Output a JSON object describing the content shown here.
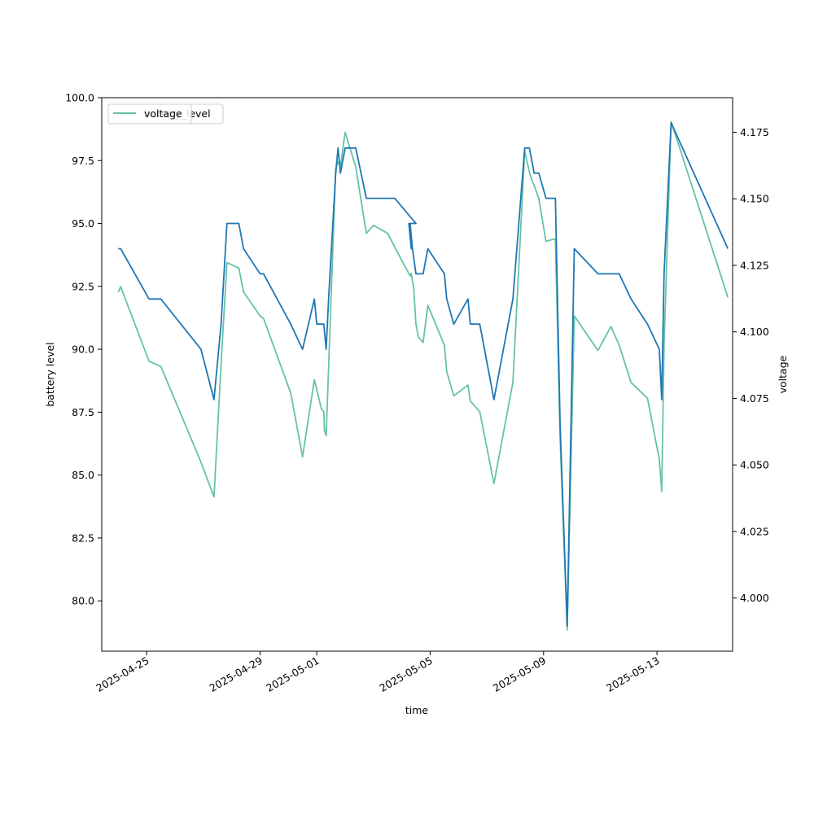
{
  "chart_data": {
    "type": "line",
    "title": "",
    "xlabel": "time",
    "ylabel": "battery level",
    "y2label": "voltage",
    "x_ticks": [
      "2025-04-25",
      "2025-04-29",
      "2025-05-01",
      "2025-05-05",
      "2025-05-09",
      "2025-05-13"
    ],
    "y_ticks": [
      "80.0",
      "82.5",
      "85.0",
      "87.5",
      "90.0",
      "92.5",
      "95.0",
      "97.5",
      "100.0"
    ],
    "y2_ticks": [
      "4.000",
      "4.025",
      "4.050",
      "4.075",
      "4.100",
      "4.125",
      "4.150",
      "4.175"
    ],
    "xlim": [
      "2025-04-23T10:00",
      "2025-05-15T16:00"
    ],
    "ylim": [
      78.0,
      100.0
    ],
    "y2lim": [
      3.98,
      4.188
    ],
    "grid": false,
    "legend": {
      "placement": "top-left",
      "entries": [
        {
          "label": "battery_level",
          "color": "#1f77b4"
        },
        {
          "label": "voltage",
          "color": "#66c2a5"
        }
      ]
    },
    "series": [
      {
        "name": "battery_level",
        "axis": "left",
        "color": "#1f77b4",
        "points": [
          [
            "2025-04-24T00:00",
            94.0
          ],
          [
            "2025-04-24T02:00",
            94.0
          ],
          [
            "2025-04-25T02:00",
            92.0
          ],
          [
            "2025-04-25T12:00",
            92.0
          ],
          [
            "2025-04-26T22:00",
            90.0
          ],
          [
            "2025-04-27T09:00",
            88.0
          ],
          [
            "2025-04-27T15:00",
            91.0
          ],
          [
            "2025-04-27T20:00",
            95.0
          ],
          [
            "2025-04-28T06:00",
            95.0
          ],
          [
            "2025-04-28T10:00",
            94.0
          ],
          [
            "2025-04-29T00:00",
            93.0
          ],
          [
            "2025-04-29T03:00",
            93.0
          ],
          [
            "2025-04-30T02:00",
            91.0
          ],
          [
            "2025-04-30T12:00",
            90.0
          ],
          [
            "2025-04-30T22:00",
            92.0
          ],
          [
            "2025-05-01T00:00",
            91.0
          ],
          [
            "2025-05-01T06:00",
            91.0
          ],
          [
            "2025-05-01T08:00",
            90.0
          ],
          [
            "2025-05-01T10:00",
            92.0
          ],
          [
            "2025-05-01T16:00",
            97.0
          ],
          [
            "2025-05-01T18:00",
            98.0
          ],
          [
            "2025-05-01T20:00",
            97.0
          ],
          [
            "2025-05-02T00:00",
            98.0
          ],
          [
            "2025-05-02T09:00",
            98.0
          ],
          [
            "2025-05-02T18:00",
            96.0
          ],
          [
            "2025-05-03T06:00",
            96.0
          ],
          [
            "2025-05-03T18:00",
            96.0
          ],
          [
            "2025-05-04T12:00",
            95.0
          ],
          [
            "2025-05-04T06:00",
            95.0
          ],
          [
            "2025-05-04T08:00",
            94.0
          ],
          [
            "2025-05-04T07:00",
            95.0
          ],
          [
            "2025-05-04T09:00",
            94.0
          ],
          [
            "2025-05-04T12:00",
            93.0
          ],
          [
            "2025-05-04T18:00",
            93.0
          ],
          [
            "2025-05-04T22:00",
            94.0
          ],
          [
            "2025-05-05T12:00",
            93.0
          ],
          [
            "2025-05-05T14:00",
            92.0
          ],
          [
            "2025-05-05T20:00",
            91.0
          ],
          [
            "2025-05-06T08:00",
            92.0
          ],
          [
            "2025-05-06T10:00",
            91.0
          ],
          [
            "2025-05-06T18:00",
            91.0
          ],
          [
            "2025-05-07T06:00",
            88.0
          ],
          [
            "2025-05-07T22:00",
            92.0
          ],
          [
            "2025-05-08T08:00",
            98.0
          ],
          [
            "2025-05-08T12:00",
            98.0
          ],
          [
            "2025-05-08T16:00",
            97.0
          ],
          [
            "2025-05-08T20:00",
            97.0
          ],
          [
            "2025-05-09T02:00",
            96.0
          ],
          [
            "2025-05-09T10:00",
            96.0
          ],
          [
            "2025-05-09T14:00",
            87.0
          ],
          [
            "2025-05-09T20:00",
            79.0
          ],
          [
            "2025-05-10T02:00",
            94.0
          ],
          [
            "2025-05-10T22:00",
            93.0
          ],
          [
            "2025-05-11T16:00",
            93.0
          ],
          [
            "2025-05-12T02:00",
            92.0
          ],
          [
            "2025-05-12T16:00",
            91.0
          ],
          [
            "2025-05-13T02:00",
            90.0
          ],
          [
            "2025-05-13T04:00",
            88.0
          ],
          [
            "2025-05-13T06:00",
            93.0
          ],
          [
            "2025-05-13T12:00",
            99.0
          ],
          [
            "2025-05-15T12:00",
            94.0
          ]
        ]
      },
      {
        "name": "voltage",
        "axis": "right",
        "color": "#66c2a5",
        "points": [
          [
            "2025-04-24T00:00",
            4.115
          ],
          [
            "2025-04-24T02:00",
            4.117
          ],
          [
            "2025-04-25T02:00",
            4.089
          ],
          [
            "2025-04-25T12:00",
            4.087
          ],
          [
            "2025-04-26T22:00",
            4.051
          ],
          [
            "2025-04-27T09:00",
            4.038
          ],
          [
            "2025-04-27T15:00",
            4.088
          ],
          [
            "2025-04-27T20:00",
            4.126
          ],
          [
            "2025-04-28T06:00",
            4.124
          ],
          [
            "2025-04-28T10:00",
            4.115
          ],
          [
            "2025-04-29T00:00",
            4.106
          ],
          [
            "2025-04-29T03:00",
            4.105
          ],
          [
            "2025-04-30T02:00",
            4.077
          ],
          [
            "2025-04-30T12:00",
            4.053
          ],
          [
            "2025-04-30T22:00",
            4.082
          ],
          [
            "2025-05-01T04:00",
            4.071
          ],
          [
            "2025-05-01T06:00",
            4.07
          ],
          [
            "2025-05-01T06:30",
            4.063
          ],
          [
            "2025-05-01T08:00",
            4.061
          ],
          [
            "2025-05-01T16:00",
            4.161
          ],
          [
            "2025-05-01T18:00",
            4.164
          ],
          [
            "2025-05-01T20:00",
            4.162
          ],
          [
            "2025-05-02T00:00",
            4.175
          ],
          [
            "2025-05-02T09:00",
            4.162
          ],
          [
            "2025-05-02T18:00",
            4.137
          ],
          [
            "2025-05-03T00:00",
            4.14
          ],
          [
            "2025-05-03T12:00",
            4.137
          ],
          [
            "2025-05-04T01:00",
            4.126
          ],
          [
            "2025-05-04T07:00",
            4.121
          ],
          [
            "2025-05-04T08:00",
            4.122
          ],
          [
            "2025-05-04T09:00",
            4.119
          ],
          [
            "2025-05-04T10:00",
            4.117
          ],
          [
            "2025-05-04T12:00",
            4.103
          ],
          [
            "2025-05-04T14:00",
            4.098
          ],
          [
            "2025-05-04T18:00",
            4.096
          ],
          [
            "2025-05-04T22:00",
            4.11
          ],
          [
            "2025-05-05T12:00",
            4.095
          ],
          [
            "2025-05-05T14:00",
            4.085
          ],
          [
            "2025-05-05T20:00",
            4.076
          ],
          [
            "2025-05-06T08:00",
            4.08
          ],
          [
            "2025-05-06T10:00",
            4.074
          ],
          [
            "2025-05-06T18:00",
            4.07
          ],
          [
            "2025-05-07T06:00",
            4.043
          ],
          [
            "2025-05-07T22:00",
            4.081
          ],
          [
            "2025-05-08T08:00",
            4.168
          ],
          [
            "2025-05-08T12:00",
            4.16
          ],
          [
            "2025-05-08T14:00",
            4.157
          ],
          [
            "2025-05-08T16:00",
            4.155
          ],
          [
            "2025-05-08T20:00",
            4.15
          ],
          [
            "2025-05-09T02:00",
            4.134
          ],
          [
            "2025-05-09T10:00",
            4.135
          ],
          [
            "2025-05-09T14:00",
            4.06
          ],
          [
            "2025-05-09T20:00",
            3.988
          ],
          [
            "2025-05-10T02:00",
            4.106
          ],
          [
            "2025-05-10T22:00",
            4.093
          ],
          [
            "2025-05-11T09:00",
            4.102
          ],
          [
            "2025-05-11T16:00",
            4.095
          ],
          [
            "2025-05-12T02:00",
            4.081
          ],
          [
            "2025-05-12T16:00",
            4.075
          ],
          [
            "2025-05-13T02:00",
            4.052
          ],
          [
            "2025-05-13T04:00",
            4.04
          ],
          [
            "2025-05-13T06:00",
            4.095
          ],
          [
            "2025-05-13T12:00",
            4.179
          ],
          [
            "2025-05-15T12:00",
            4.113
          ]
        ]
      }
    ]
  }
}
